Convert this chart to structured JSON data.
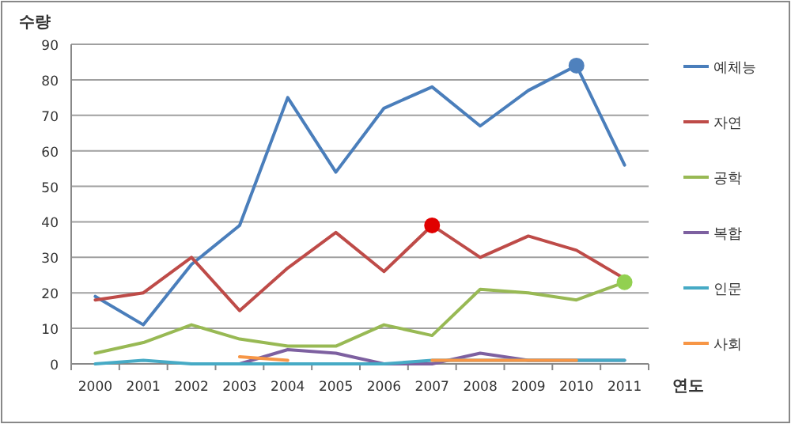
{
  "chart_data": {
    "type": "line",
    "xlabel": "연도",
    "ylabel": "수량",
    "categories": [
      "2000",
      "2001",
      "2002",
      "2003",
      "2004",
      "2005",
      "2006",
      "2007",
      "2008",
      "2009",
      "2010",
      "2011"
    ],
    "ylim": [
      0,
      90
    ],
    "yticks": [
      0,
      10,
      20,
      30,
      40,
      50,
      60,
      70,
      80,
      90
    ],
    "grid": "y",
    "legend": "right",
    "series": [
      {
        "name": "예체능",
        "color": "#4a7ebb",
        "values": [
          19,
          11,
          28,
          39,
          75,
          54,
          72,
          78,
          67,
          77,
          84,
          56
        ]
      },
      {
        "name": "자연",
        "color": "#be4b48",
        "values": [
          18,
          20,
          30,
          15,
          27,
          37,
          26,
          39,
          30,
          36,
          32,
          24
        ]
      },
      {
        "name": "공학",
        "color": "#98b954",
        "values": [
          3,
          6,
          11,
          7,
          5,
          5,
          11,
          8,
          21,
          20,
          18,
          23
        ]
      },
      {
        "name": "복합",
        "color": "#7d60a0",
        "values": [
          null,
          null,
          null,
          0,
          4,
          3,
          0,
          0,
          3,
          1,
          1,
          1
        ]
      },
      {
        "name": "인문",
        "color": "#46aac5",
        "values": [
          0,
          1,
          0,
          0,
          0,
          0,
          0,
          1,
          1,
          1,
          1,
          1
        ]
      },
      {
        "name": "사회",
        "color": "#f79646",
        "values": [
          null,
          null,
          null,
          2,
          1,
          null,
          null,
          1,
          1,
          1,
          1,
          null
        ]
      },
      {
        "type": "scatter",
        "marker": "circle",
        "color": "#4f81bd",
        "values": [
          null,
          null,
          null,
          null,
          null,
          null,
          null,
          null,
          null,
          null,
          84,
          null
        ]
      },
      {
        "type": "scatter",
        "marker": "circle",
        "color": "#e00000",
        "values": [
          null,
          null,
          null,
          null,
          null,
          null,
          null,
          39,
          null,
          null,
          null,
          null
        ]
      },
      {
        "type": "scatter",
        "marker": "circle",
        "color": "#92d050",
        "values": [
          null,
          null,
          null,
          null,
          null,
          null,
          null,
          null,
          null,
          null,
          null,
          23
        ]
      }
    ]
  }
}
